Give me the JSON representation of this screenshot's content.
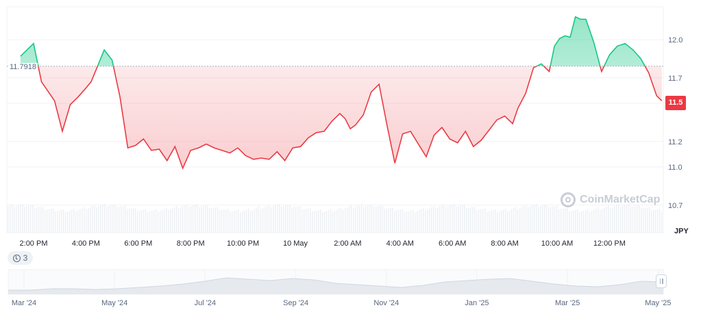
{
  "chart_data": {
    "type": "area",
    "title": "",
    "currency": "JPY",
    "reference_value": "11.7918",
    "current_value": "11.5",
    "ylim": [
      10.5,
      12.3
    ],
    "y_ticks": [
      "12.0",
      "11.7",
      "11.5",
      "11.2",
      "11.0",
      "10.7"
    ],
    "y_tick_values": [
      12.0,
      11.7,
      11.5,
      11.2,
      11.0,
      10.7
    ],
    "x_ticks": [
      "2:00 PM",
      "4:00 PM",
      "6:00 PM",
      "8:00 PM",
      "10:00 PM",
      "10 May",
      "2:00 AM",
      "4:00 AM",
      "6:00 AM",
      "8:00 AM",
      "10:00 AM",
      "12:00 PM"
    ],
    "x_tick_hours": [
      0,
      2,
      4,
      6,
      8,
      10,
      12,
      14,
      16,
      18,
      20,
      22
    ],
    "x_unit": "hours since 2:00 PM",
    "series": [
      {
        "x": [
          -0.5,
          0.0,
          0.3,
          0.6,
          0.8,
          1.1,
          1.4,
          1.7,
          2.0,
          2.2,
          2.4,
          2.7,
          3.0,
          3.3,
          3.6,
          3.9,
          4.2,
          4.5,
          4.8,
          5.1,
          5.4,
          5.7,
          6.0,
          6.3,
          6.6,
          6.9,
          7.2,
          7.5,
          7.8,
          8.1,
          8.4,
          8.7,
          9.0,
          9.3,
          9.6,
          9.9,
          10.2,
          10.5,
          10.8,
          11.1,
          11.4,
          11.7,
          11.9,
          12.1,
          12.3,
          12.6,
          12.9,
          13.2,
          13.5,
          13.8,
          14.1,
          14.4,
          14.7,
          15.0,
          15.3,
          15.6,
          15.9,
          16.2,
          16.5,
          16.8,
          17.1,
          17.4,
          17.7,
          18.0,
          18.3,
          18.5,
          18.8,
          19.1,
          19.4,
          19.7,
          19.9,
          20.1,
          20.3,
          20.5,
          20.7,
          20.9,
          21.1,
          21.4,
          21.7,
          22.0,
          22.3,
          22.6,
          22.9,
          23.2,
          23.5,
          23.8,
          24.0
        ],
        "values": [
          11.87,
          11.97,
          11.67,
          11.58,
          11.52,
          11.28,
          11.49,
          11.55,
          11.62,
          11.67,
          11.77,
          11.92,
          11.84,
          11.55,
          11.15,
          11.17,
          11.22,
          11.13,
          11.14,
          11.05,
          11.16,
          10.99,
          11.13,
          11.15,
          11.18,
          11.15,
          11.13,
          11.11,
          11.15,
          11.09,
          11.06,
          11.07,
          11.06,
          11.12,
          11.05,
          11.15,
          11.16,
          11.23,
          11.27,
          11.28,
          11.36,
          11.42,
          11.38,
          11.3,
          11.33,
          11.41,
          11.59,
          11.65,
          11.33,
          11.03,
          11.26,
          11.28,
          11.18,
          11.08,
          11.25,
          11.31,
          11.22,
          11.19,
          11.28,
          11.16,
          11.21,
          11.29,
          11.37,
          11.4,
          11.34,
          11.46,
          11.58,
          11.78,
          11.81,
          11.75,
          11.95,
          12.01,
          12.03,
          12.02,
          12.18,
          12.16,
          12.16,
          11.98,
          11.75,
          11.88,
          11.95,
          11.97,
          11.92,
          11.85,
          11.74,
          11.56,
          11.52
        ]
      }
    ]
  },
  "badges": {
    "reference_label": "11.7918",
    "current_label": "11.5"
  },
  "axis": {
    "unit_label": "JPY"
  },
  "watermark": {
    "text": "CoinMarketCap"
  },
  "history_button": {
    "count": "3"
  },
  "navigator": {
    "ticks": [
      "Mar '24",
      "May '24",
      "Jul '24",
      "Sep '24",
      "Nov '24",
      "Jan '25",
      "Mar '25",
      "May '25"
    ],
    "tick_months": [
      0,
      2,
      4,
      6,
      8,
      10,
      12,
      14
    ],
    "values": [
      10.9,
      10.9,
      11.0,
      11.0,
      10.95,
      11.0,
      11.1,
      11.2,
      11.35,
      11.55,
      11.8,
      11.7,
      11.6,
      11.75,
      11.65,
      11.4,
      11.3,
      11.2,
      11.1,
      11.25,
      11.5,
      11.6,
      11.7,
      11.75,
      11.55,
      11.35,
      11.2,
      11.15,
      11.3,
      11.55,
      11.5
    ]
  },
  "colors": {
    "up": "#16c784",
    "down": "#ea3943",
    "grid": "#eff2f5",
    "reference": "#a6b0c3"
  }
}
